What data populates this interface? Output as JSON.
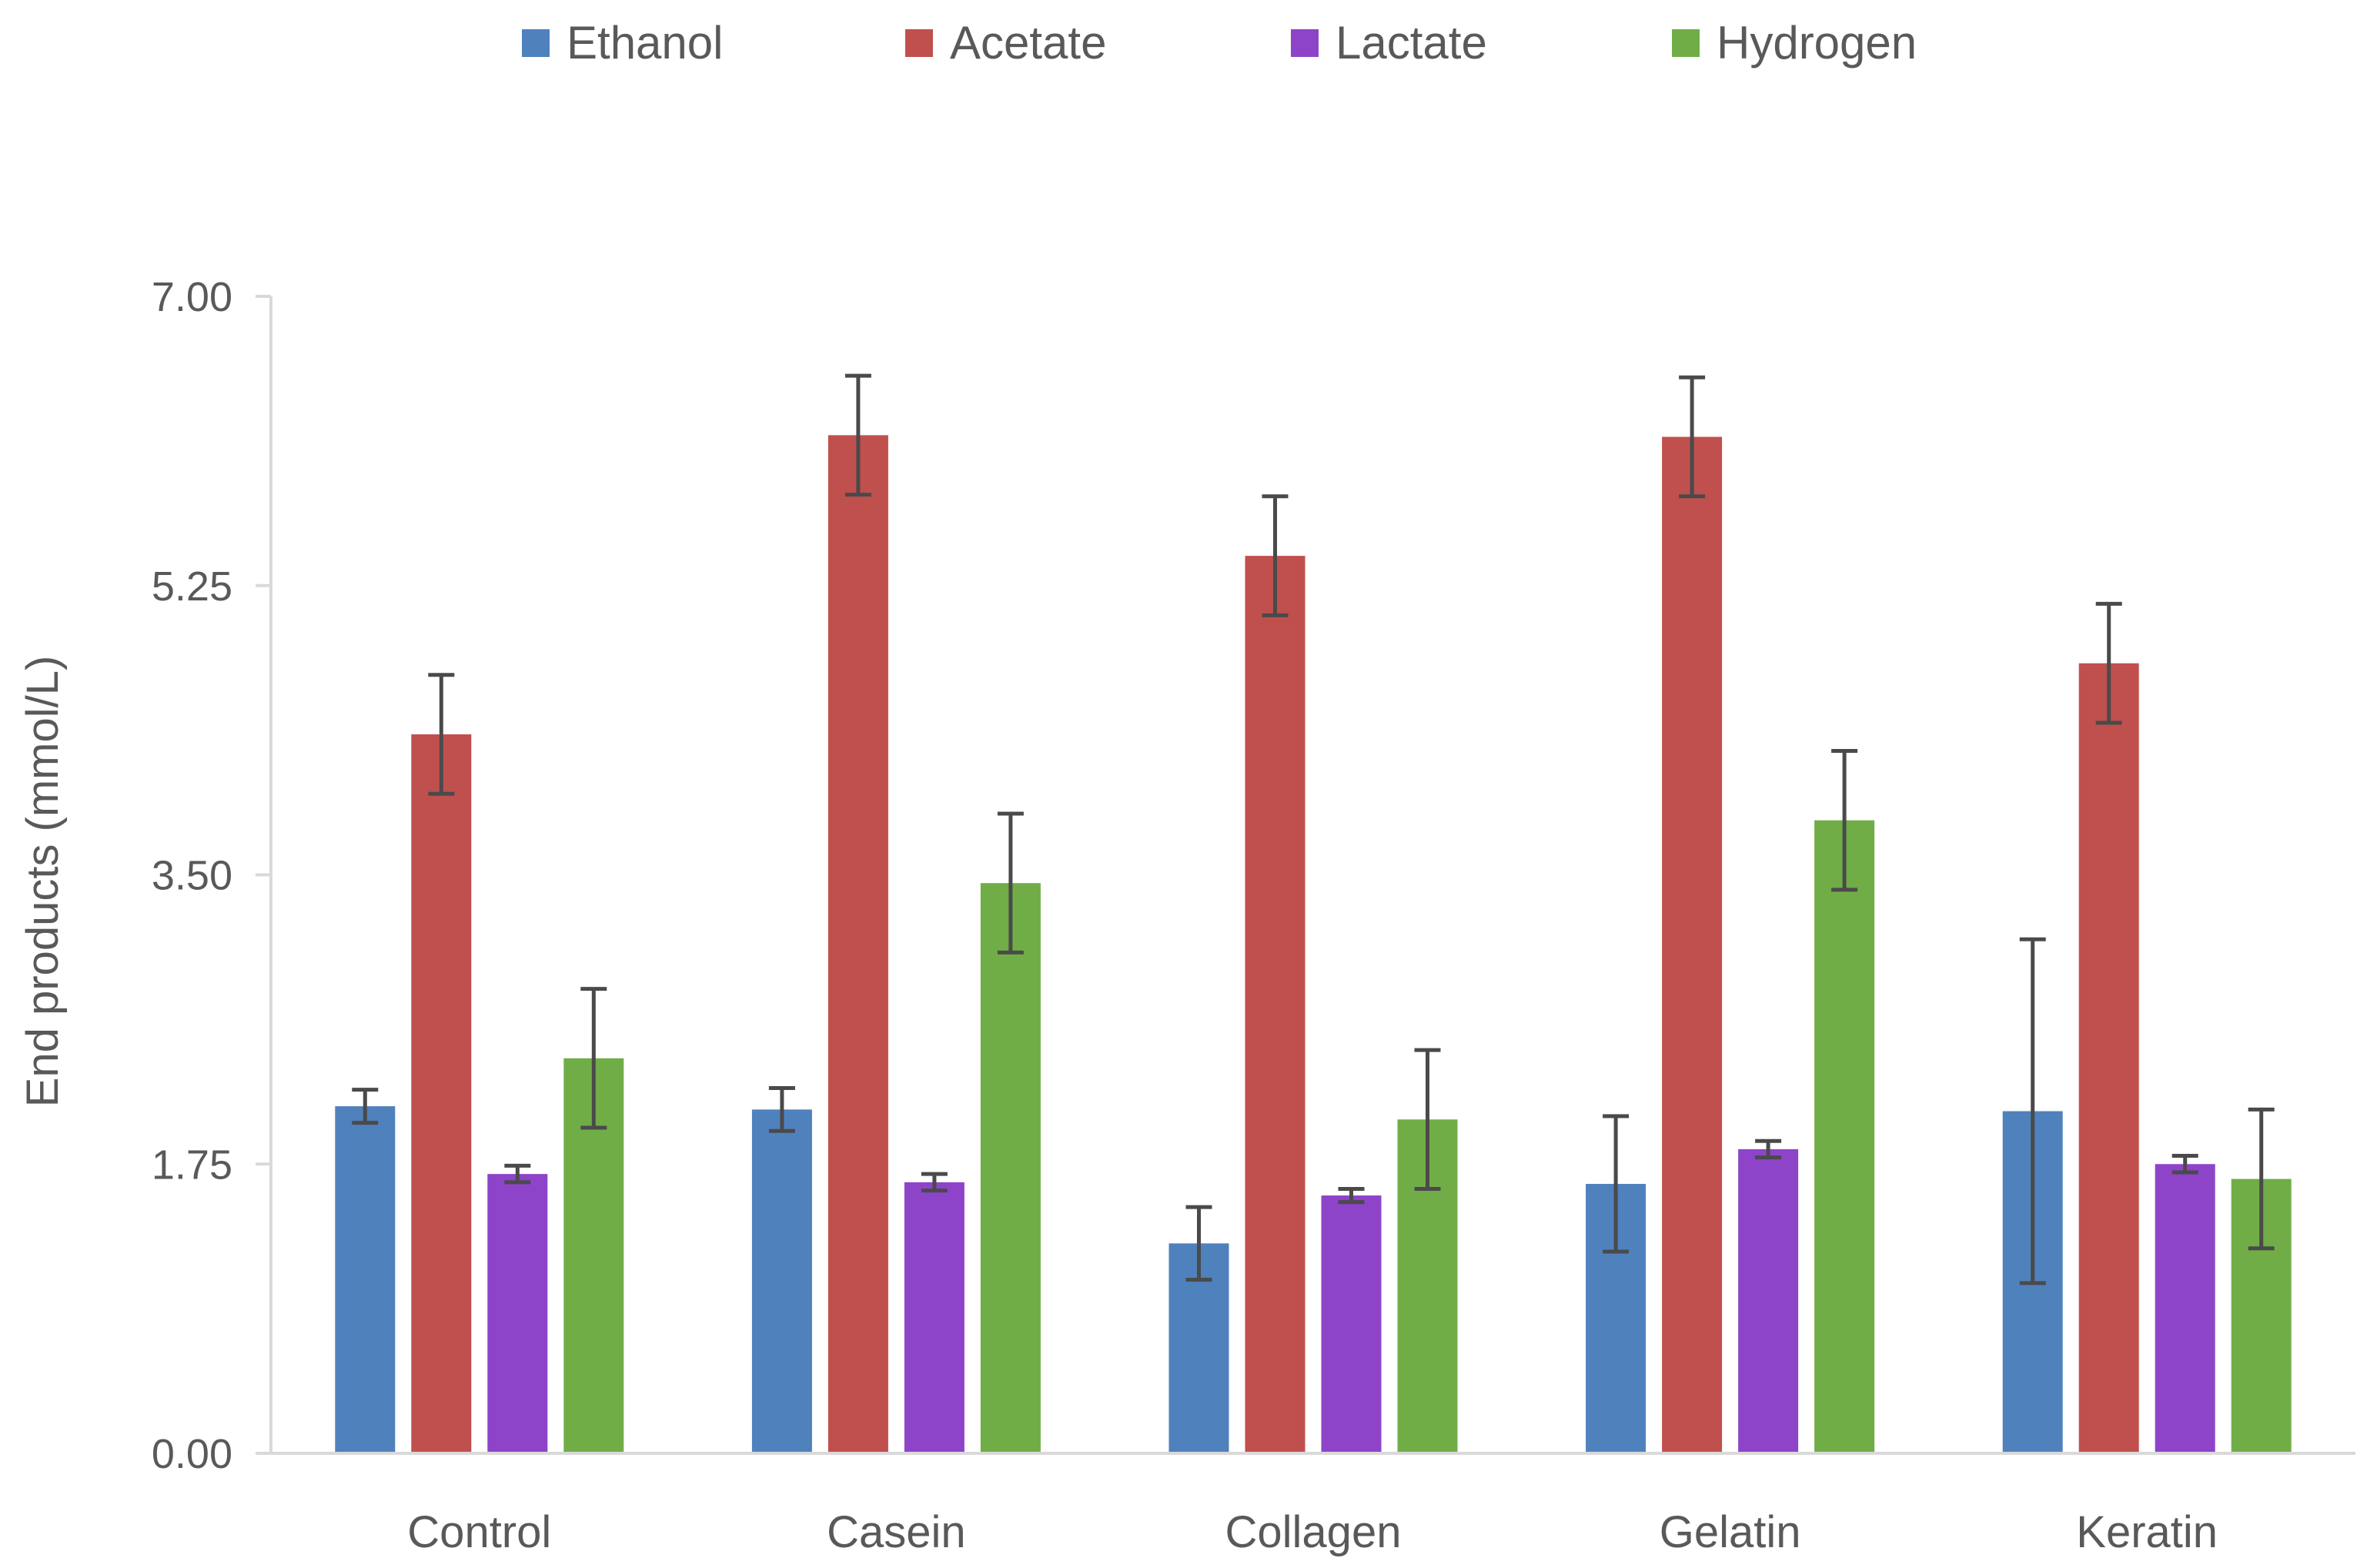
{
  "chart_data": {
    "type": "bar",
    "title": "",
    "xlabel": "",
    "ylabel": "End products (mmol/L)",
    "ylim": [
      0,
      7
    ],
    "yticks": [
      0,
      1.75,
      3.5,
      5.25,
      7
    ],
    "ytick_labels": [
      "0.00",
      "1.75",
      "3.50",
      "5.25",
      "7.00"
    ],
    "grid": false,
    "legend_position": "top-center",
    "categories": [
      "Control",
      "Casein",
      "Collagen",
      "Gelatin",
      "Keratin"
    ],
    "series": [
      {
        "name": "Ethanol",
        "color": "#4F81BD",
        "values": [
          2.1,
          2.08,
          1.27,
          1.63,
          2.07
        ],
        "errors": [
          0.1,
          0.13,
          0.22,
          0.41,
          1.04
        ]
      },
      {
        "name": "Acetate",
        "color": "#C0504D",
        "values": [
          4.35,
          6.16,
          5.43,
          6.15,
          4.78
        ],
        "errors": [
          0.36,
          0.36,
          0.36,
          0.36,
          0.36
        ]
      },
      {
        "name": "Lactate",
        "color": "#8E44C8",
        "values": [
          1.69,
          1.64,
          1.56,
          1.84,
          1.75
        ],
        "errors": [
          0.05,
          0.05,
          0.04,
          0.05,
          0.05
        ]
      },
      {
        "name": "Hydrogen",
        "color": "#70AD47",
        "values": [
          2.39,
          3.45,
          2.02,
          3.83,
          1.66
        ],
        "errors": [
          0.42,
          0.42,
          0.42,
          0.42,
          0.42
        ]
      }
    ]
  }
}
